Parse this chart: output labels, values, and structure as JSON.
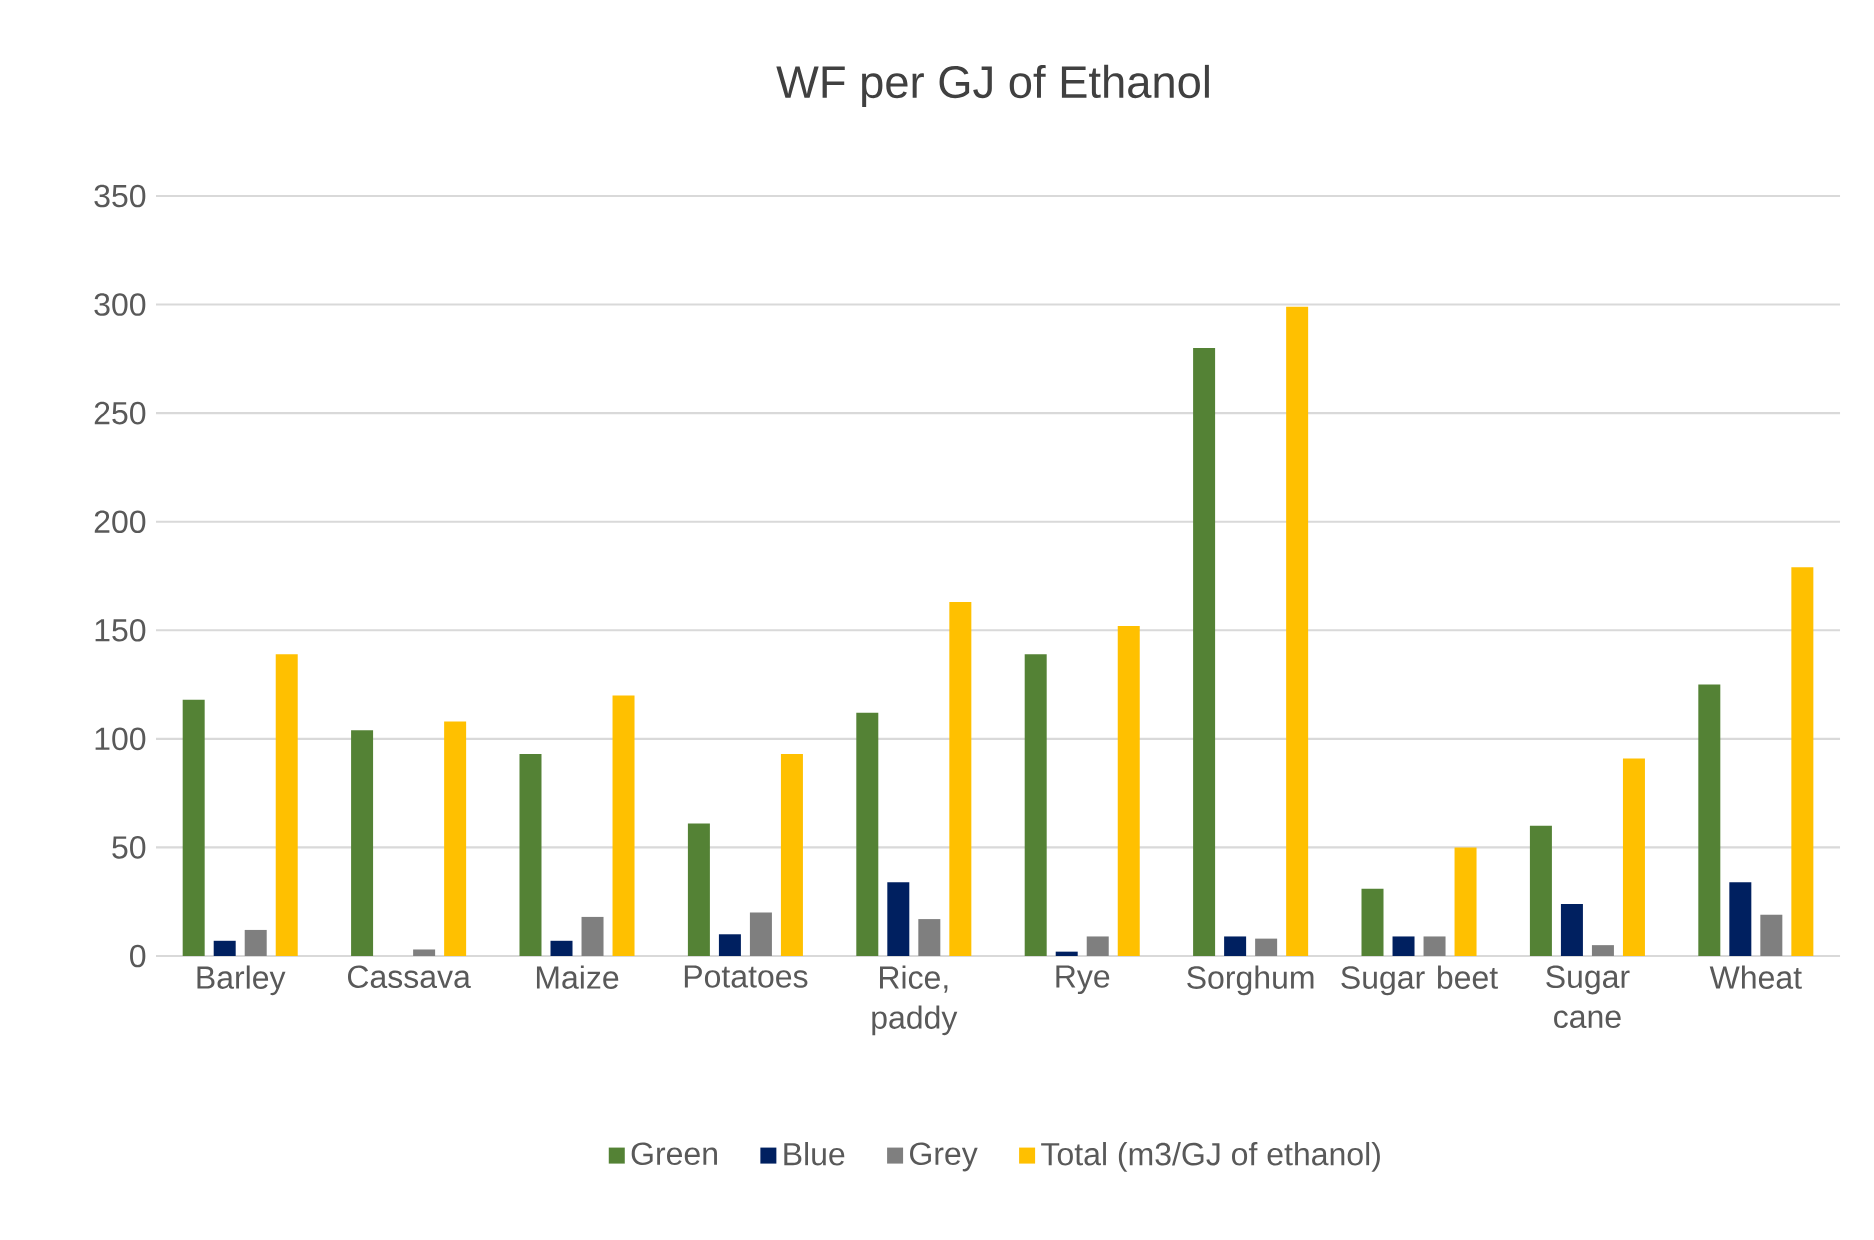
{
  "chart_data": {
    "type": "bar",
    "title": "WF per GJ of Ethanol",
    "categories": [
      "Barley",
      "Cassava",
      "Maize",
      "Potatoes",
      "Rice, paddy",
      "Rye",
      "Sorghum",
      "Sugar beet",
      "Sugar cane",
      "Wheat"
    ],
    "series": [
      {
        "name": "Green",
        "color": "#548235",
        "values": [
          118,
          104,
          93,
          61,
          112,
          139,
          280,
          31,
          60,
          125
        ]
      },
      {
        "name": "Blue",
        "color": "#002060",
        "values": [
          7,
          0,
          7,
          10,
          34,
          2,
          9,
          9,
          24,
          34
        ]
      },
      {
        "name": "Grey",
        "color": "#7f7f7f",
        "values": [
          12,
          3,
          18,
          20,
          17,
          9,
          8,
          9,
          5,
          19
        ]
      },
      {
        "name": "Total (m3/GJ of ethanol)",
        "color": "#ffc000",
        "values": [
          139,
          108,
          120,
          93,
          163,
          152,
          299,
          50,
          91,
          179
        ]
      }
    ],
    "ylim": [
      0,
      350
    ],
    "yticks": [
      0,
      50,
      100,
      150,
      200,
      250,
      300,
      350
    ],
    "grid": "y",
    "legend": "bottom"
  }
}
